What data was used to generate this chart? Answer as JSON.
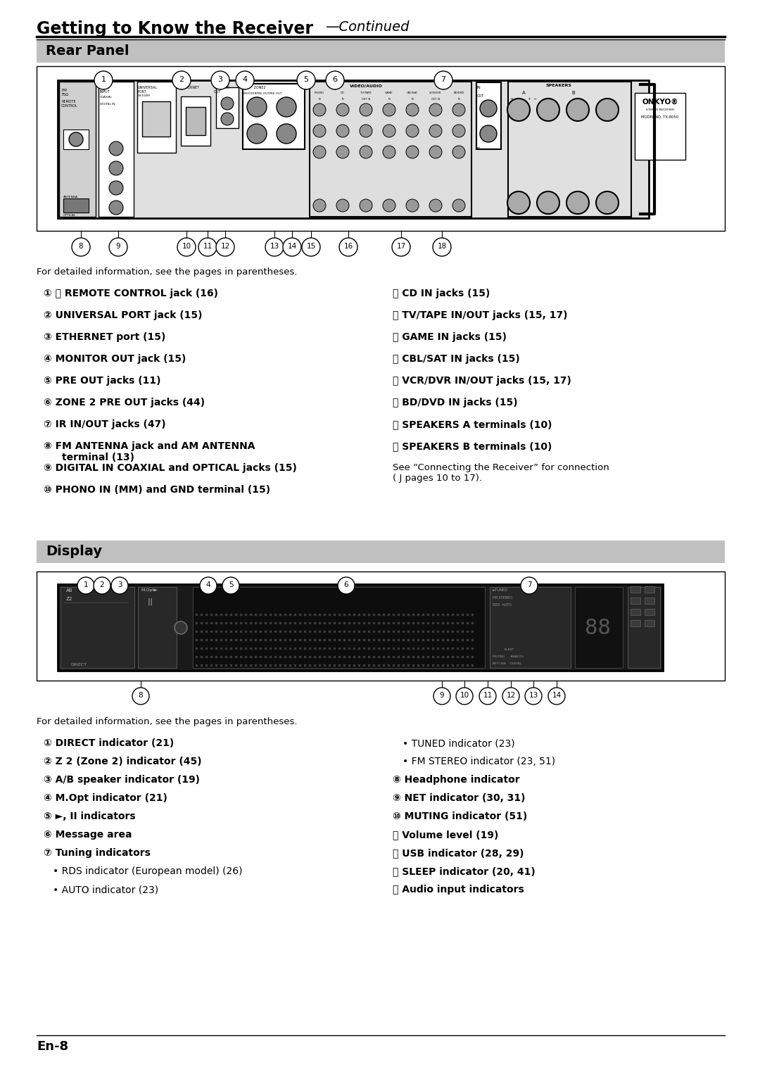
{
  "title_bold": "Getting to Know the Receiver",
  "title_italic": "—Continued",
  "bg_color": "#ffffff",
  "section1_title": "Rear Panel",
  "section2_title": "Display",
  "section_header_bg": "#c0c0c0",
  "footer_text": "En-8",
  "rear_note": "For detailed information, see the pages in parentheses.",
  "rear_left": [
    [
      "①",
      "⨽ REMOTE CONTROL jack (16)"
    ],
    [
      "②",
      "UNIVERSAL PORT jack (15)"
    ],
    [
      "③",
      "ETHERNET port (15)"
    ],
    [
      "④",
      "MONITOR OUT jack (15)"
    ],
    [
      "⑤",
      "PRE OUT jacks (11)"
    ],
    [
      "⑥",
      "ZONE 2 PRE OUT jacks (44)"
    ],
    [
      "⑦",
      "IR IN/OUT jacks (47)"
    ],
    [
      "⑧",
      "FM ANTENNA jack and AM ANTENNA\nterminal (13)"
    ],
    [
      "⑨",
      "DIGITAL IN COAXIAL and OPTICAL jacks (15)"
    ],
    [
      "⑩",
      "PHONO IN (MM) and GND terminal (15)"
    ]
  ],
  "rear_right": [
    [
      "⑪",
      "CD IN jacks (15)"
    ],
    [
      "⑫",
      "TV/TAPE IN/OUT jacks (15, 17)"
    ],
    [
      "⑬",
      "GAME IN jacks (15)"
    ],
    [
      "⑭",
      "CBL/SAT IN jacks (15)"
    ],
    [
      "⑮",
      "VCR/DVR IN/OUT jacks (15, 17)"
    ],
    [
      "⑯",
      "BD/DVD IN jacks (15)"
    ],
    [
      "⑰",
      "SPEAKERS A terminals (10)"
    ],
    [
      "⑱",
      "SPEAKERS B terminals (10)"
    ]
  ],
  "rear_see": "See “Connecting the Receiver” for connection\n( J pages 10 to 17).",
  "display_left": [
    [
      "①",
      "DIRECT indicator (21)",
      "bold"
    ],
    [
      "②",
      "Z 2 (Zone 2) indicator (45)",
      "bold"
    ],
    [
      "③",
      "A/B speaker indicator (19)",
      "bold"
    ],
    [
      "④",
      "M.Opt indicator (21)",
      "bold"
    ],
    [
      "⑤",
      "►, II indicators",
      "bold"
    ],
    [
      "⑥",
      "Message area",
      "bold"
    ],
    [
      "⑦",
      "Tuning indicators",
      "bold"
    ],
    [
      "",
      "• RDS indicator (European model) (26)",
      "normal"
    ],
    [
      "",
      "• AUTO indicator (23)",
      "normal"
    ]
  ],
  "display_right": [
    [
      "",
      "• TUNED indicator (23)",
      "normal"
    ],
    [
      "",
      "• FM STEREO indicator (23, 51)",
      "normal"
    ],
    [
      "⑧",
      "Headphone indicator",
      "bold"
    ],
    [
      "⑨",
      "NET indicator (30, 31)",
      "bold"
    ],
    [
      "⑩",
      "MUTING indicator (51)",
      "bold"
    ],
    [
      "⑪",
      "Volume level (19)",
      "bold"
    ],
    [
      "⑫",
      "USB indicator (28, 29)",
      "bold"
    ],
    [
      "⑬",
      "SLEEP indicator (20, 41)",
      "bold"
    ],
    [
      "⑭",
      "Audio input indicators",
      "bold"
    ]
  ],
  "display_note": "For detailed information, see the pages in parentheses."
}
